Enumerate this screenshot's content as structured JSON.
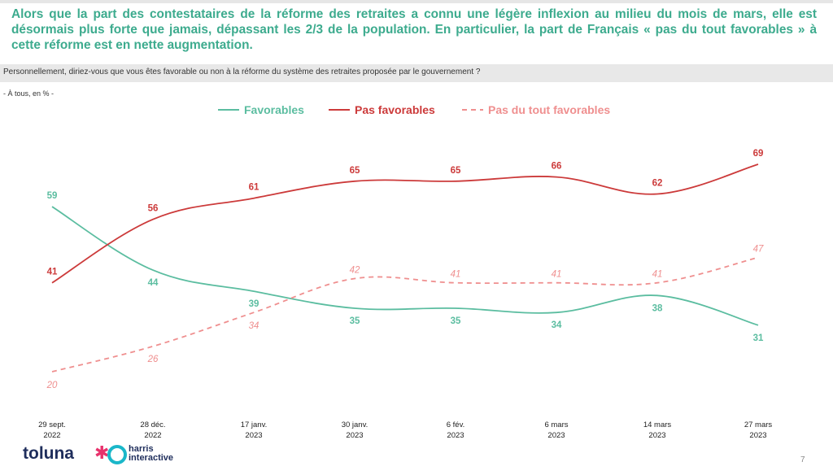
{
  "headline": "Alors que la part des contestataires de la réforme des retraites a connu une légère inflexion au milieu du mois de mars, elle est désormais plus forte que jamais, dépassant les 2/3 de la population. En particulier, la part de Français « pas du tout favorables » à cette réforme est en nette augmentation.",
  "question": "Personnellement, diriez-vous que vous êtes favorable ou non à la réforme du système des retraites proposée par le gouvernement ?",
  "base": "- À tous, en % -",
  "page_number": "7",
  "logo": {
    "brand": "toluna",
    "partner_line1": "harris",
    "partner_line2": "interactive"
  },
  "colors": {
    "favorables": "#5bbda0",
    "pas_favorables": "#cc3a3a",
    "pas_du_tout": "#ef8f8f",
    "headline": "#3dab8e"
  },
  "chart_data": {
    "type": "line",
    "categories": [
      [
        "29 sept.",
        "2022"
      ],
      [
        "28 déc.",
        "2022"
      ],
      [
        "17 janv.",
        "2023"
      ],
      [
        "30 janv.",
        "2023"
      ],
      [
        "6 fév.",
        "2023"
      ],
      [
        "6 mars",
        "2023"
      ],
      [
        "14 mars",
        "2023"
      ],
      [
        "27 mars",
        "2023"
      ]
    ],
    "ylim": [
      0,
      100
    ],
    "legend_position": "top-center",
    "grid": false,
    "series": [
      {
        "name": "Favorables",
        "style": "solid",
        "values": [
          59,
          44,
          39,
          35,
          35,
          34,
          38,
          31
        ]
      },
      {
        "name": "Pas favorables",
        "style": "solid",
        "values": [
          41,
          56,
          61,
          65,
          65,
          66,
          62,
          69
        ]
      },
      {
        "name": "Pas du tout favorables",
        "style": "dashed",
        "values": [
          20,
          26,
          34,
          42,
          41,
          41,
          41,
          47
        ]
      }
    ]
  }
}
